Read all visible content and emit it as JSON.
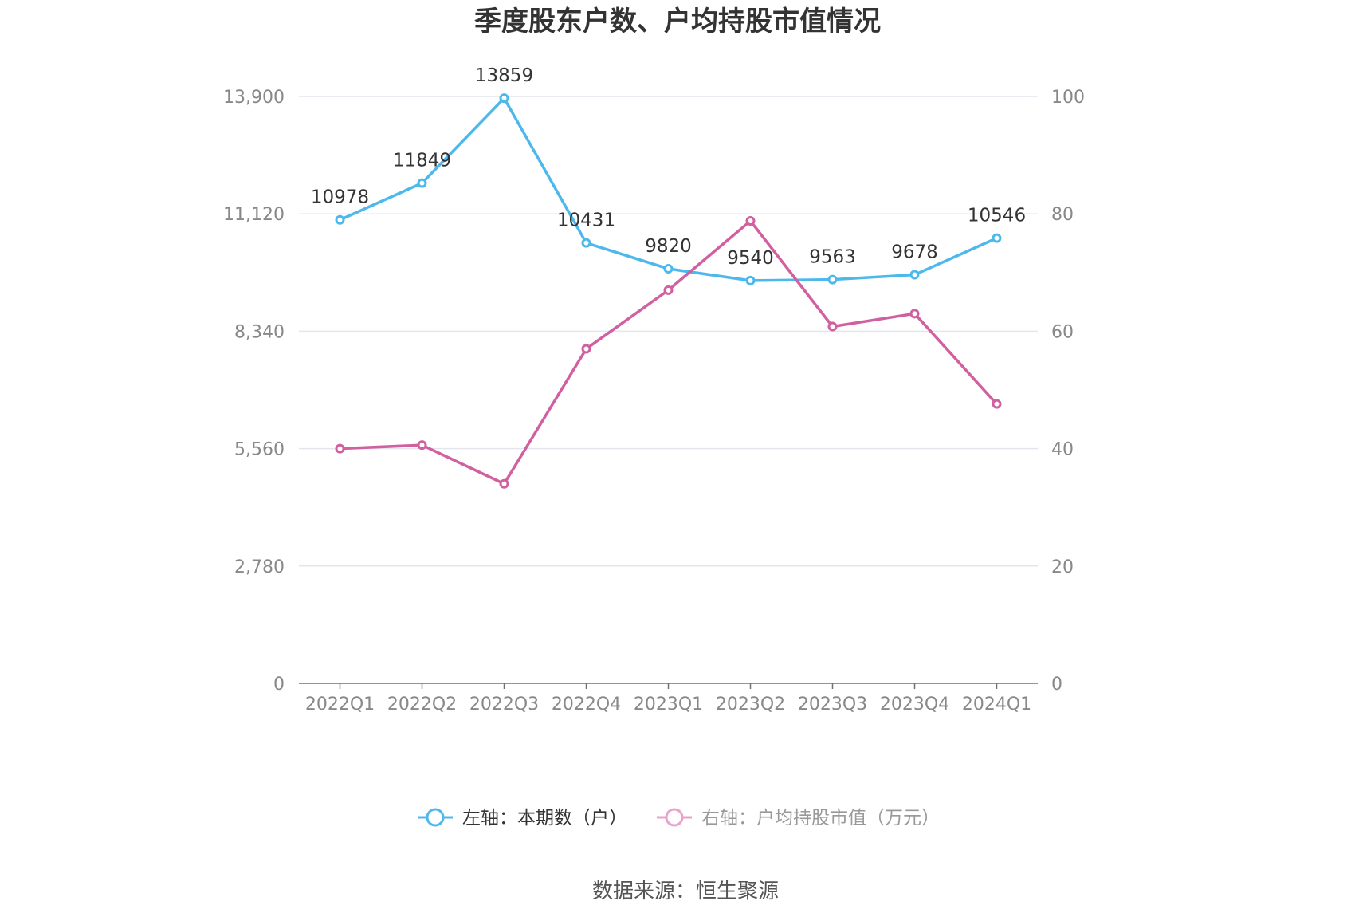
{
  "chart_data": {
    "type": "line",
    "title": "季度股东户数、户均持股市值情况",
    "categories": [
      "2022Q1",
      "2022Q2",
      "2022Q3",
      "2022Q4",
      "2023Q1",
      "2023Q2",
      "2023Q3",
      "2023Q4",
      "2024Q1"
    ],
    "left_axis": {
      "ticks": [
        0,
        2780,
        5560,
        8340,
        11120,
        13900
      ],
      "tick_labels": [
        "0",
        "2,780",
        "5,560",
        "8,340",
        "11,120",
        "13,900"
      ],
      "ylim": [
        0,
        13900
      ]
    },
    "right_axis": {
      "ticks": [
        0,
        20,
        40,
        60,
        80,
        100
      ],
      "tick_labels": [
        "0",
        "20",
        "40",
        "60",
        "80",
        "100"
      ],
      "ylim": [
        0,
        100
      ]
    },
    "series": [
      {
        "name": "左轴：本期数（户）",
        "axis": "left",
        "color": "#4db8ec",
        "values": [
          10978,
          11849,
          13859,
          10431,
          9820,
          9540,
          9563,
          9678,
          10546
        ],
        "data_labels": [
          "10978",
          "11849",
          "13859",
          "10431",
          "9820",
          "9540",
          "9563",
          "9678",
          "10546"
        ]
      },
      {
        "name": "右轴：户均持股市值（万元）",
        "axis": "right",
        "color": "#d0609f",
        "values": [
          40.0,
          40.6,
          34.0,
          57.0,
          67.0,
          78.8,
          60.8,
          63.0,
          47.6
        ]
      }
    ],
    "grid": true,
    "legend_position": "bottom"
  },
  "source": "数据来源：恒生聚源"
}
